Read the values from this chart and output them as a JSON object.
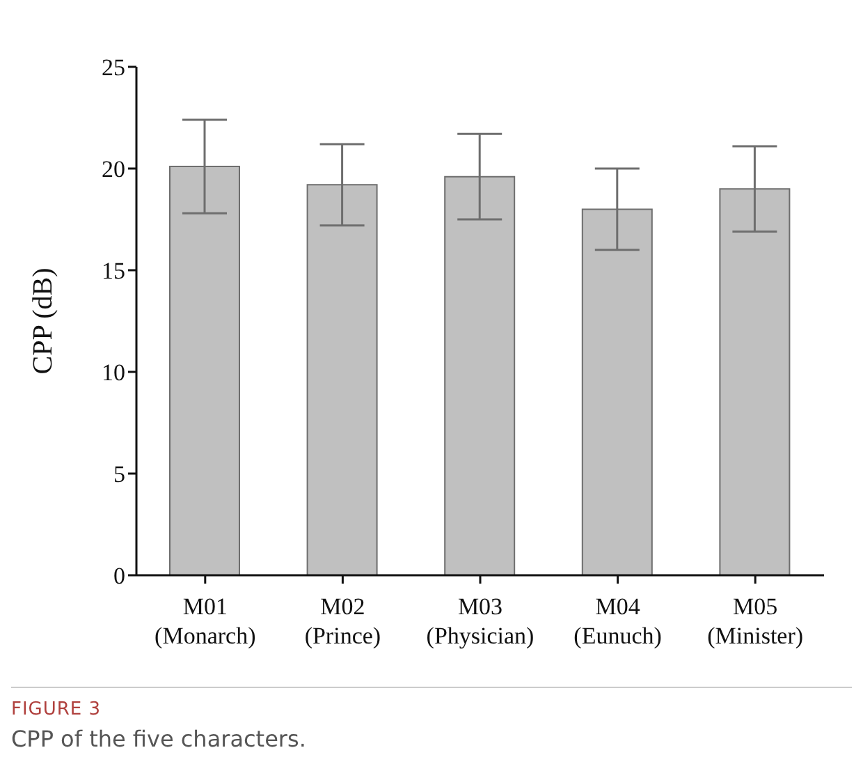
{
  "chart_data": {
    "type": "bar",
    "categories": [
      "M01\n(Monarch)",
      "M02\n(Prince)",
      "M03\n(Physician)",
      "M04\n(Eunuch)",
      "M05\n(Minister)"
    ],
    "values": [
      20.1,
      19.2,
      19.6,
      18.0,
      19.0
    ],
    "errors": [
      2.3,
      2.0,
      2.1,
      2.0,
      2.1
    ],
    "color": "#c0c0c0",
    "ylabel": "CPP (dB)",
    "ylim": [
      0,
      25
    ],
    "yticks": [
      0,
      5,
      10,
      15,
      20,
      25
    ],
    "grid": false,
    "legend": false,
    "annotations": [
      "FIGURE 3",
      "CPP of the five characters."
    ]
  }
}
